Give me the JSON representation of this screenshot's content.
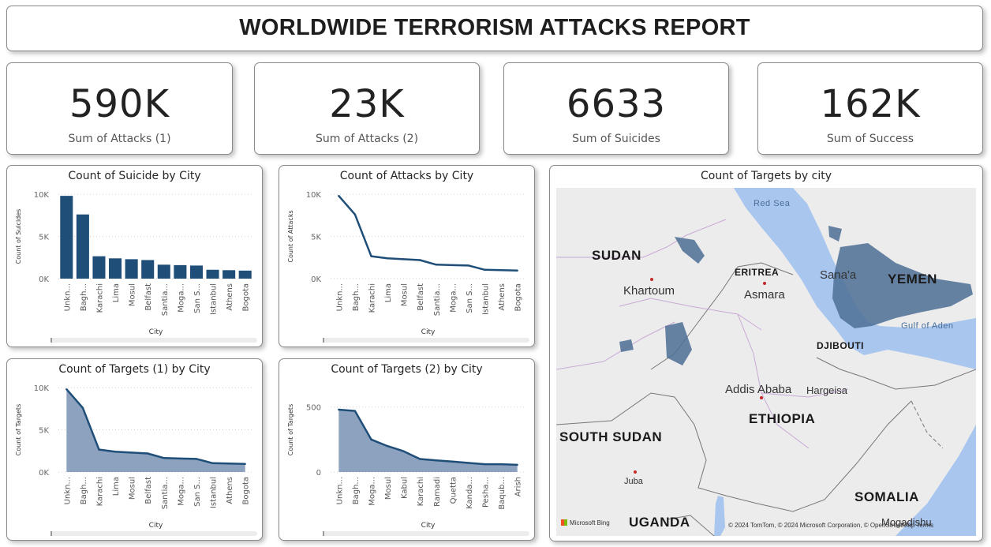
{
  "header": {
    "title": "WORLDWIDE TERRORISM ATTACKS REPORT"
  },
  "kpis": [
    {
      "value": "590K",
      "label": "Sum of Attacks (1)"
    },
    {
      "value": "23K",
      "label": "Sum of Attacks (2)"
    },
    {
      "value": "6633",
      "label": "Sum of Suicides"
    },
    {
      "value": "162K",
      "label": "Sum of Success"
    }
  ],
  "colors": {
    "primary": "#1f4e79",
    "area_fill": "#8da2bf",
    "map_water": "#a9c6ef",
    "map_land": "#ececec",
    "map_highlight": "#4e6f95"
  },
  "chart_data": [
    {
      "id": "suicide_by_city",
      "type": "bar",
      "title": "Count of Suicide by City",
      "xlabel": "City",
      "ylabel": "Count of Suicides",
      "yticks": [
        "10K",
        "5K",
        "0K"
      ],
      "ylim": [
        0,
        10000
      ],
      "categories": [
        "Unkn...",
        "Bagh...",
        "Karachi",
        "Lima",
        "Mosul",
        "Belfast",
        "Santia...",
        "Moga...",
        "San S...",
        "Istanbul",
        "Athens",
        "Bogota"
      ],
      "values": [
        9800,
        7600,
        2650,
        2400,
        2300,
        2200,
        1650,
        1600,
        1550,
        1050,
        1000,
        950
      ]
    },
    {
      "id": "attacks_by_city",
      "type": "line",
      "title": "Count of Attacks by City",
      "xlabel": "City",
      "ylabel": "Count of Attacks",
      "yticks": [
        "10K",
        "5K",
        "0K"
      ],
      "ylim": [
        0,
        10000
      ],
      "categories": [
        "Unkn...",
        "Bagh...",
        "Karachi",
        "Lima",
        "Mosul",
        "Belfast",
        "Santia...",
        "Moga...",
        "San S...",
        "Istanbul",
        "Athens",
        "Bogota"
      ],
      "values": [
        9800,
        7600,
        2650,
        2400,
        2300,
        2200,
        1650,
        1600,
        1550,
        1050,
        1000,
        950
      ]
    },
    {
      "id": "targets1_by_city",
      "type": "area",
      "title": "Count of Targets (1) by City",
      "xlabel": "City",
      "ylabel": "Count of Targets",
      "yticks": [
        "10K",
        "5K",
        "0K"
      ],
      "ylim": [
        0,
        10000
      ],
      "categories": [
        "Unkn...",
        "Bagh...",
        "Karachi",
        "Lima",
        "Mosul",
        "Belfast",
        "Santia...",
        "Moga...",
        "San S...",
        "Istanbul",
        "Athens",
        "Bogota"
      ],
      "values": [
        9800,
        7600,
        2650,
        2400,
        2300,
        2200,
        1650,
        1600,
        1550,
        1050,
        1000,
        950
      ]
    },
    {
      "id": "targets2_by_city",
      "type": "area",
      "title": "Count of Targets (2) by City",
      "xlabel": "City",
      "ylabel": "Count of Targets",
      "yticks": [
        "500",
        "0"
      ],
      "ylim": [
        0,
        650
      ],
      "categories": [
        "Unkn...",
        "Bagh...",
        "Moga...",
        "Mosul",
        "Kabul",
        "Karachi",
        "Ramadi",
        "Quetta",
        "Kanda...",
        "Pesha...",
        "Baqub...",
        "Arish"
      ],
      "values": [
        480,
        470,
        250,
        200,
        160,
        100,
        90,
        80,
        70,
        60,
        60,
        55
      ]
    }
  ],
  "map": {
    "title": "Count of Targets by city",
    "countries": [
      "SUDAN",
      "ERITREA",
      "YEMEN",
      "DJIBOUTI",
      "ETHIOPIA",
      "SOUTH SUDAN",
      "SOMALIA",
      "UGANDA"
    ],
    "cities": [
      "Khartoum",
      "Asmara",
      "Sana'a",
      "Addis Ababa",
      "Hargeisa",
      "Juba",
      "Mogadishu"
    ],
    "water": [
      "Red Sea",
      "Gulf of Aden"
    ],
    "attribution": "© 2024 TomTom, © 2024 Microsoft Corporation, © OpenStreetMap  Terms",
    "provider": "Microsoft Bing"
  }
}
